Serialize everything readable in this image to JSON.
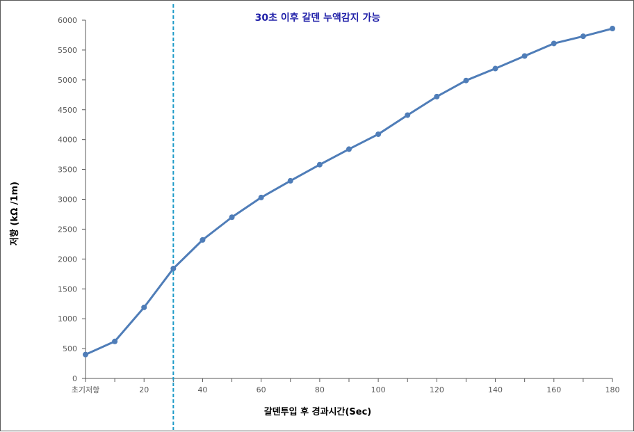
{
  "chart_data": {
    "type": "line",
    "title": "",
    "xlabel": "갈덴투입 후 경과시간(Sec)",
    "ylabel": "저항 (kΩ /1m)",
    "xlim": [
      0,
      180
    ],
    "ylim": [
      0,
      6000
    ],
    "yticks": [
      "0",
      "500",
      "1000",
      "1500",
      "2000",
      "2500",
      "3000",
      "3500",
      "4000",
      "4500",
      "5000",
      "5500",
      "6000"
    ],
    "xticks": [
      {
        "x": 0,
        "label": "초기저항"
      },
      {
        "x": 20,
        "label": "20"
      },
      {
        "x": 40,
        "label": "40"
      },
      {
        "x": 60,
        "label": "60"
      },
      {
        "x": 80,
        "label": "80"
      },
      {
        "x": 100,
        "label": "100"
      },
      {
        "x": 120,
        "label": "120"
      },
      {
        "x": 140,
        "label": "140"
      },
      {
        "x": 160,
        "label": "160"
      },
      {
        "x": 180,
        "label": "180"
      }
    ],
    "series": [
      {
        "name": "",
        "color": "#4F7DB8",
        "x": [
          0,
          10,
          20,
          30,
          40,
          50,
          60,
          70,
          80,
          90,
          100,
          110,
          120,
          130,
          140,
          150,
          160,
          170,
          180
        ],
        "y": [
          400,
          620,
          1190,
          1840,
          2320,
          2700,
          3030,
          3310,
          3580,
          3840,
          4090,
          4410,
          4720,
          4990,
          5190,
          5400,
          5610,
          5730,
          5860
        ]
      }
    ],
    "reference_line": {
      "x": 30,
      "color": "#1E9BC8",
      "style": "dashed"
    },
    "annotation": {
      "text": "30초 이후 갈덴 누액감지 가능",
      "color": "#1F1FA8"
    },
    "grid": false,
    "legend": "none"
  }
}
